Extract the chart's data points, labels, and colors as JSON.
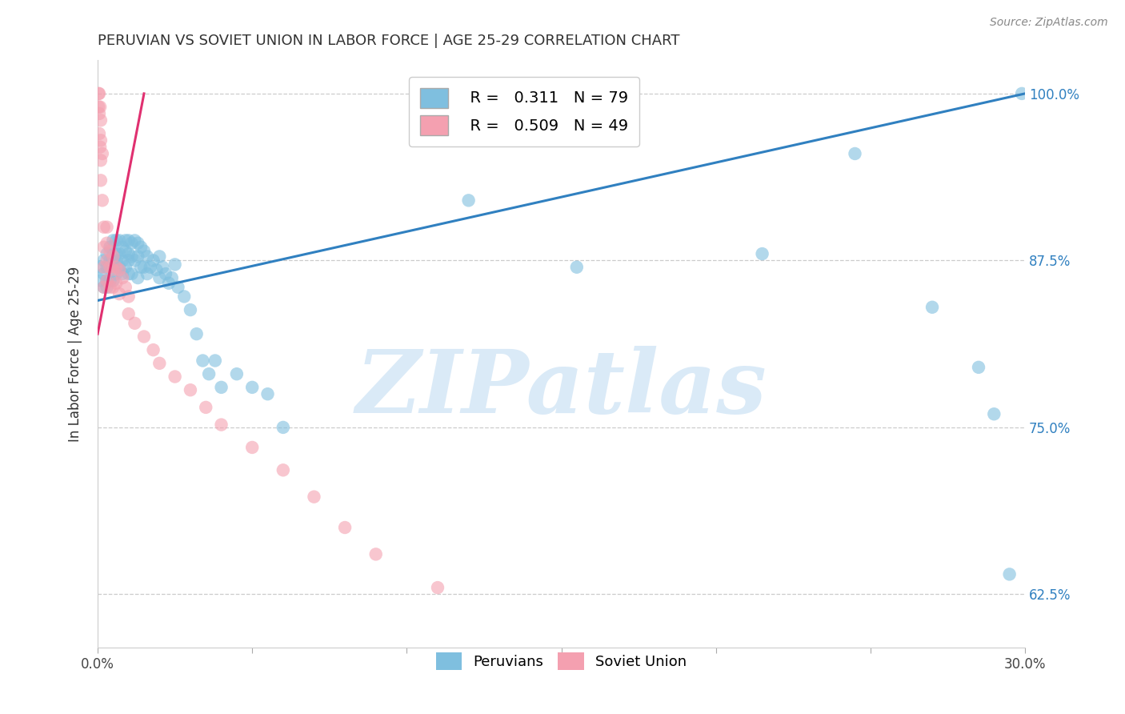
{
  "title": "PERUVIAN VS SOVIET UNION IN LABOR FORCE | AGE 25-29 CORRELATION CHART",
  "source": "Source: ZipAtlas.com",
  "ylabel": "In Labor Force | Age 25-29",
  "xlim": [
    0.0,
    0.3
  ],
  "ylim": [
    0.585,
    1.025
  ],
  "yticks": [
    0.625,
    0.75,
    0.875,
    1.0
  ],
  "ytick_labels": [
    "62.5%",
    "75.0%",
    "87.5%",
    "100.0%"
  ],
  "xticks": [
    0.0,
    0.05,
    0.1,
    0.15,
    0.2,
    0.25,
    0.3
  ],
  "xtick_labels": [
    "0.0%",
    "",
    "",
    "",
    "",
    "",
    "30.0%"
  ],
  "blue_r": 0.311,
  "blue_n": 79,
  "pink_r": 0.509,
  "pink_n": 49,
  "blue_color": "#7fbfdf",
  "pink_color": "#f4a0b0",
  "blue_line_color": "#3080c0",
  "pink_line_color": "#e03070",
  "watermark": "ZIPatlas",
  "watermark_color": "#daeaf7",
  "blue_scatter_x": [
    0.001,
    0.001,
    0.002,
    0.002,
    0.002,
    0.003,
    0.003,
    0.003,
    0.003,
    0.004,
    0.004,
    0.004,
    0.005,
    0.005,
    0.005,
    0.005,
    0.005,
    0.006,
    0.006,
    0.006,
    0.006,
    0.007,
    0.007,
    0.007,
    0.008,
    0.008,
    0.008,
    0.009,
    0.009,
    0.009,
    0.01,
    0.01,
    0.01,
    0.01,
    0.011,
    0.011,
    0.011,
    0.012,
    0.012,
    0.013,
    0.013,
    0.013,
    0.014,
    0.014,
    0.015,
    0.015,
    0.016,
    0.016,
    0.017,
    0.018,
    0.019,
    0.02,
    0.02,
    0.021,
    0.022,
    0.023,
    0.024,
    0.025,
    0.026,
    0.028,
    0.03,
    0.032,
    0.034,
    0.036,
    0.038,
    0.04,
    0.045,
    0.05,
    0.055,
    0.06,
    0.12,
    0.155,
    0.215,
    0.245,
    0.27,
    0.285,
    0.29,
    0.295,
    0.299
  ],
  "blue_scatter_y": [
    0.87,
    0.86,
    0.875,
    0.865,
    0.855,
    0.88,
    0.87,
    0.86,
    0.855,
    0.885,
    0.875,
    0.86,
    0.89,
    0.88,
    0.875,
    0.87,
    0.86,
    0.89,
    0.88,
    0.875,
    0.865,
    0.89,
    0.88,
    0.87,
    0.885,
    0.875,
    0.865,
    0.89,
    0.882,
    0.87,
    0.89,
    0.88,
    0.875,
    0.865,
    0.888,
    0.878,
    0.865,
    0.89,
    0.875,
    0.888,
    0.878,
    0.862,
    0.885,
    0.87,
    0.882,
    0.87,
    0.878,
    0.865,
    0.87,
    0.875,
    0.868,
    0.878,
    0.862,
    0.87,
    0.865,
    0.858,
    0.862,
    0.872,
    0.855,
    0.848,
    0.838,
    0.82,
    0.8,
    0.79,
    0.8,
    0.78,
    0.79,
    0.78,
    0.775,
    0.75,
    0.92,
    0.87,
    0.88,
    0.955,
    0.84,
    0.795,
    0.76,
    0.64,
    1.0
  ],
  "pink_scatter_x": [
    0.0003,
    0.0003,
    0.0005,
    0.0005,
    0.0005,
    0.0008,
    0.0008,
    0.001,
    0.001,
    0.001,
    0.001,
    0.0015,
    0.0015,
    0.002,
    0.002,
    0.002,
    0.002,
    0.003,
    0.003,
    0.003,
    0.003,
    0.004,
    0.004,
    0.004,
    0.005,
    0.005,
    0.005,
    0.006,
    0.006,
    0.007,
    0.007,
    0.008,
    0.009,
    0.01,
    0.01,
    0.012,
    0.015,
    0.018,
    0.02,
    0.025,
    0.03,
    0.035,
    0.04,
    0.05,
    0.06,
    0.07,
    0.08,
    0.09,
    0.11
  ],
  "pink_scatter_y": [
    1.0,
    0.99,
    1.0,
    0.985,
    0.97,
    0.99,
    0.96,
    0.98,
    0.965,
    0.95,
    0.935,
    0.955,
    0.92,
    0.9,
    0.885,
    0.87,
    0.855,
    0.9,
    0.888,
    0.875,
    0.86,
    0.882,
    0.87,
    0.855,
    0.878,
    0.868,
    0.855,
    0.87,
    0.858,
    0.868,
    0.85,
    0.862,
    0.855,
    0.848,
    0.835,
    0.828,
    0.818,
    0.808,
    0.798,
    0.788,
    0.778,
    0.765,
    0.752,
    0.735,
    0.718,
    0.698,
    0.675,
    0.655,
    0.63
  ],
  "blue_line_x": [
    0.0,
    0.3
  ],
  "blue_line_y": [
    0.845,
    1.0
  ],
  "pink_line_x": [
    0.0,
    0.015
  ],
  "pink_line_y": [
    0.82,
    1.0
  ]
}
